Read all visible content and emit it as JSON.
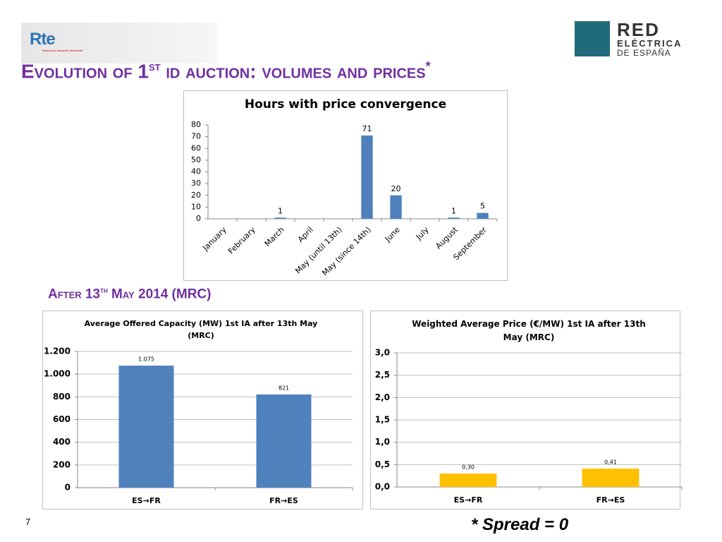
{
  "logo_left": {
    "name": "Rte",
    "tagline": "Réseau de transport d'électricité"
  },
  "logo_right": {
    "line1": "RED",
    "line2": "ELÉCTRICA",
    "line3": "DE ESPAÑA"
  },
  "title": {
    "main": "Evolution of 1",
    "sup": "st",
    "rest": " id auction: volumes and prices",
    "mark": "*"
  },
  "subtitle": {
    "main": "After 13",
    "sup": "th",
    "rest": " May 2014 (MRC)"
  },
  "page_number": "7",
  "footnote": "* Spread = 0",
  "chart_data": [
    {
      "type": "bar",
      "title": "Hours with price convergence",
      "categories": [
        "January",
        "February",
        "March",
        "April",
        "May (until 13th)",
        "May (since 14th)",
        "June",
        "July",
        "August",
        "September"
      ],
      "values": [
        null,
        null,
        1,
        null,
        null,
        71,
        20,
        null,
        1,
        5
      ],
      "color": "#4f81bd",
      "ylim": [
        0,
        80
      ],
      "yticks": [
        0,
        10,
        20,
        30,
        40,
        50,
        60,
        70,
        80
      ],
      "grid": false
    },
    {
      "type": "bar",
      "title": "Average Offered Capacity (MW) 1st IA after 13th May (MRC)",
      "categories": [
        "ES→FR",
        "FR→ES"
      ],
      "values": [
        1075,
        821
      ],
      "value_labels": [
        "1.075",
        "821"
      ],
      "color": "#4f81bd",
      "ylim": [
        0,
        1200
      ],
      "yticks": [
        0,
        200,
        400,
        600,
        800,
        {
          "value": 1000,
          "label": "1.000"
        },
        {
          "value": 1200,
          "label": "1.200"
        }
      ],
      "grid": true
    },
    {
      "type": "bar",
      "title": "Weighted Average Price (€/MW) 1st IA after 13th May (MRC)",
      "categories": [
        "ES→FR",
        "FR→ES"
      ],
      "values": [
        0.3,
        0.41
      ],
      "value_labels": [
        "0,30",
        "0,41"
      ],
      "color": "#ffc000",
      "ylim": [
        0,
        3
      ],
      "yticks": [
        {
          "value": 0,
          "label": "0,0"
        },
        {
          "value": 0.5,
          "label": "0,5"
        },
        {
          "value": 1,
          "label": "1,0"
        },
        {
          "value": 1.5,
          "label": "1,5"
        },
        {
          "value": 2,
          "label": "2,0"
        },
        {
          "value": 2.5,
          "label": "2,5"
        },
        {
          "value": 3,
          "label": "3,0"
        }
      ],
      "grid": true
    }
  ]
}
